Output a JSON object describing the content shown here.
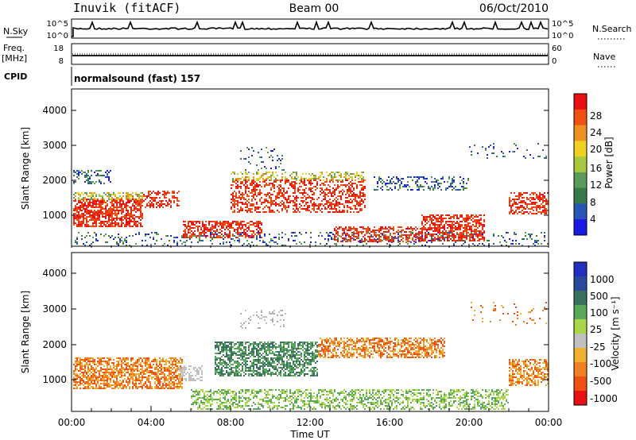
{
  "header": {
    "station": "Inuvik (fitACF)",
    "beam": "Beam 00",
    "date": "06/Oct/2010"
  },
  "side_labels": {
    "nsky": "N.Sky",
    "freq_line1": "Freq.",
    "freq_line2": "[MHz]",
    "cpid": "CPID",
    "nsearch": "N.Search",
    "nave": "Nave"
  },
  "cpid_text": "normalsound (fast) 157",
  "time_axis": {
    "label": "Time UT",
    "ticks": [
      "00:00",
      "04:00",
      "08:00",
      "12:00",
      "16:00",
      "20:00",
      "00:00"
    ]
  },
  "colors": {
    "power_scale": [
      "#1a1ae6",
      "#2a55b8",
      "#3a7a4a",
      "#5a9a5a",
      "#a8c840",
      "#f0d020",
      "#f09020",
      "#f05010",
      "#e81010"
    ],
    "velocity_scale": [
      "#e81010",
      "#f05010",
      "#f08020",
      "#f0b030",
      "#c0c0c0",
      "#a8d848",
      "#5aa85a",
      "#3a7060",
      "#2a4aa0",
      "#2030c0"
    ]
  },
  "chart_data": [
    {
      "type": "line",
      "panel": "noise",
      "left_ticks": [
        "10^5",
        "10^0"
      ],
      "right_ticks": [
        "10^5",
        "10^0"
      ]
    },
    {
      "type": "line",
      "panel": "frequency",
      "left_ticks": [
        "18",
        "8"
      ],
      "right_ticks": [
        "60",
        "0"
      ]
    },
    {
      "type": "heatmap",
      "panel": "power",
      "xlabel": "Time UT",
      "ylabel": "Slant Range [km]",
      "y_ticks": [
        "1000",
        "2000",
        "3000",
        "4000"
      ],
      "colorbar_label": "Power [dB]",
      "colorbar_ticks": [
        "4",
        "8",
        "12",
        "16",
        "20",
        "24",
        "28"
      ]
    },
    {
      "type": "heatmap",
      "panel": "velocity",
      "xlabel": "Time UT",
      "ylabel": "Slant Range [km]",
      "y_ticks": [
        "1000",
        "2000",
        "3000",
        "4000"
      ],
      "colorbar_label": "Velocity [m s⁻¹]",
      "colorbar_ticks": [
        "1000",
        "500",
        "100",
        "25",
        "-25",
        "-100",
        "-500",
        "-1000"
      ]
    }
  ]
}
